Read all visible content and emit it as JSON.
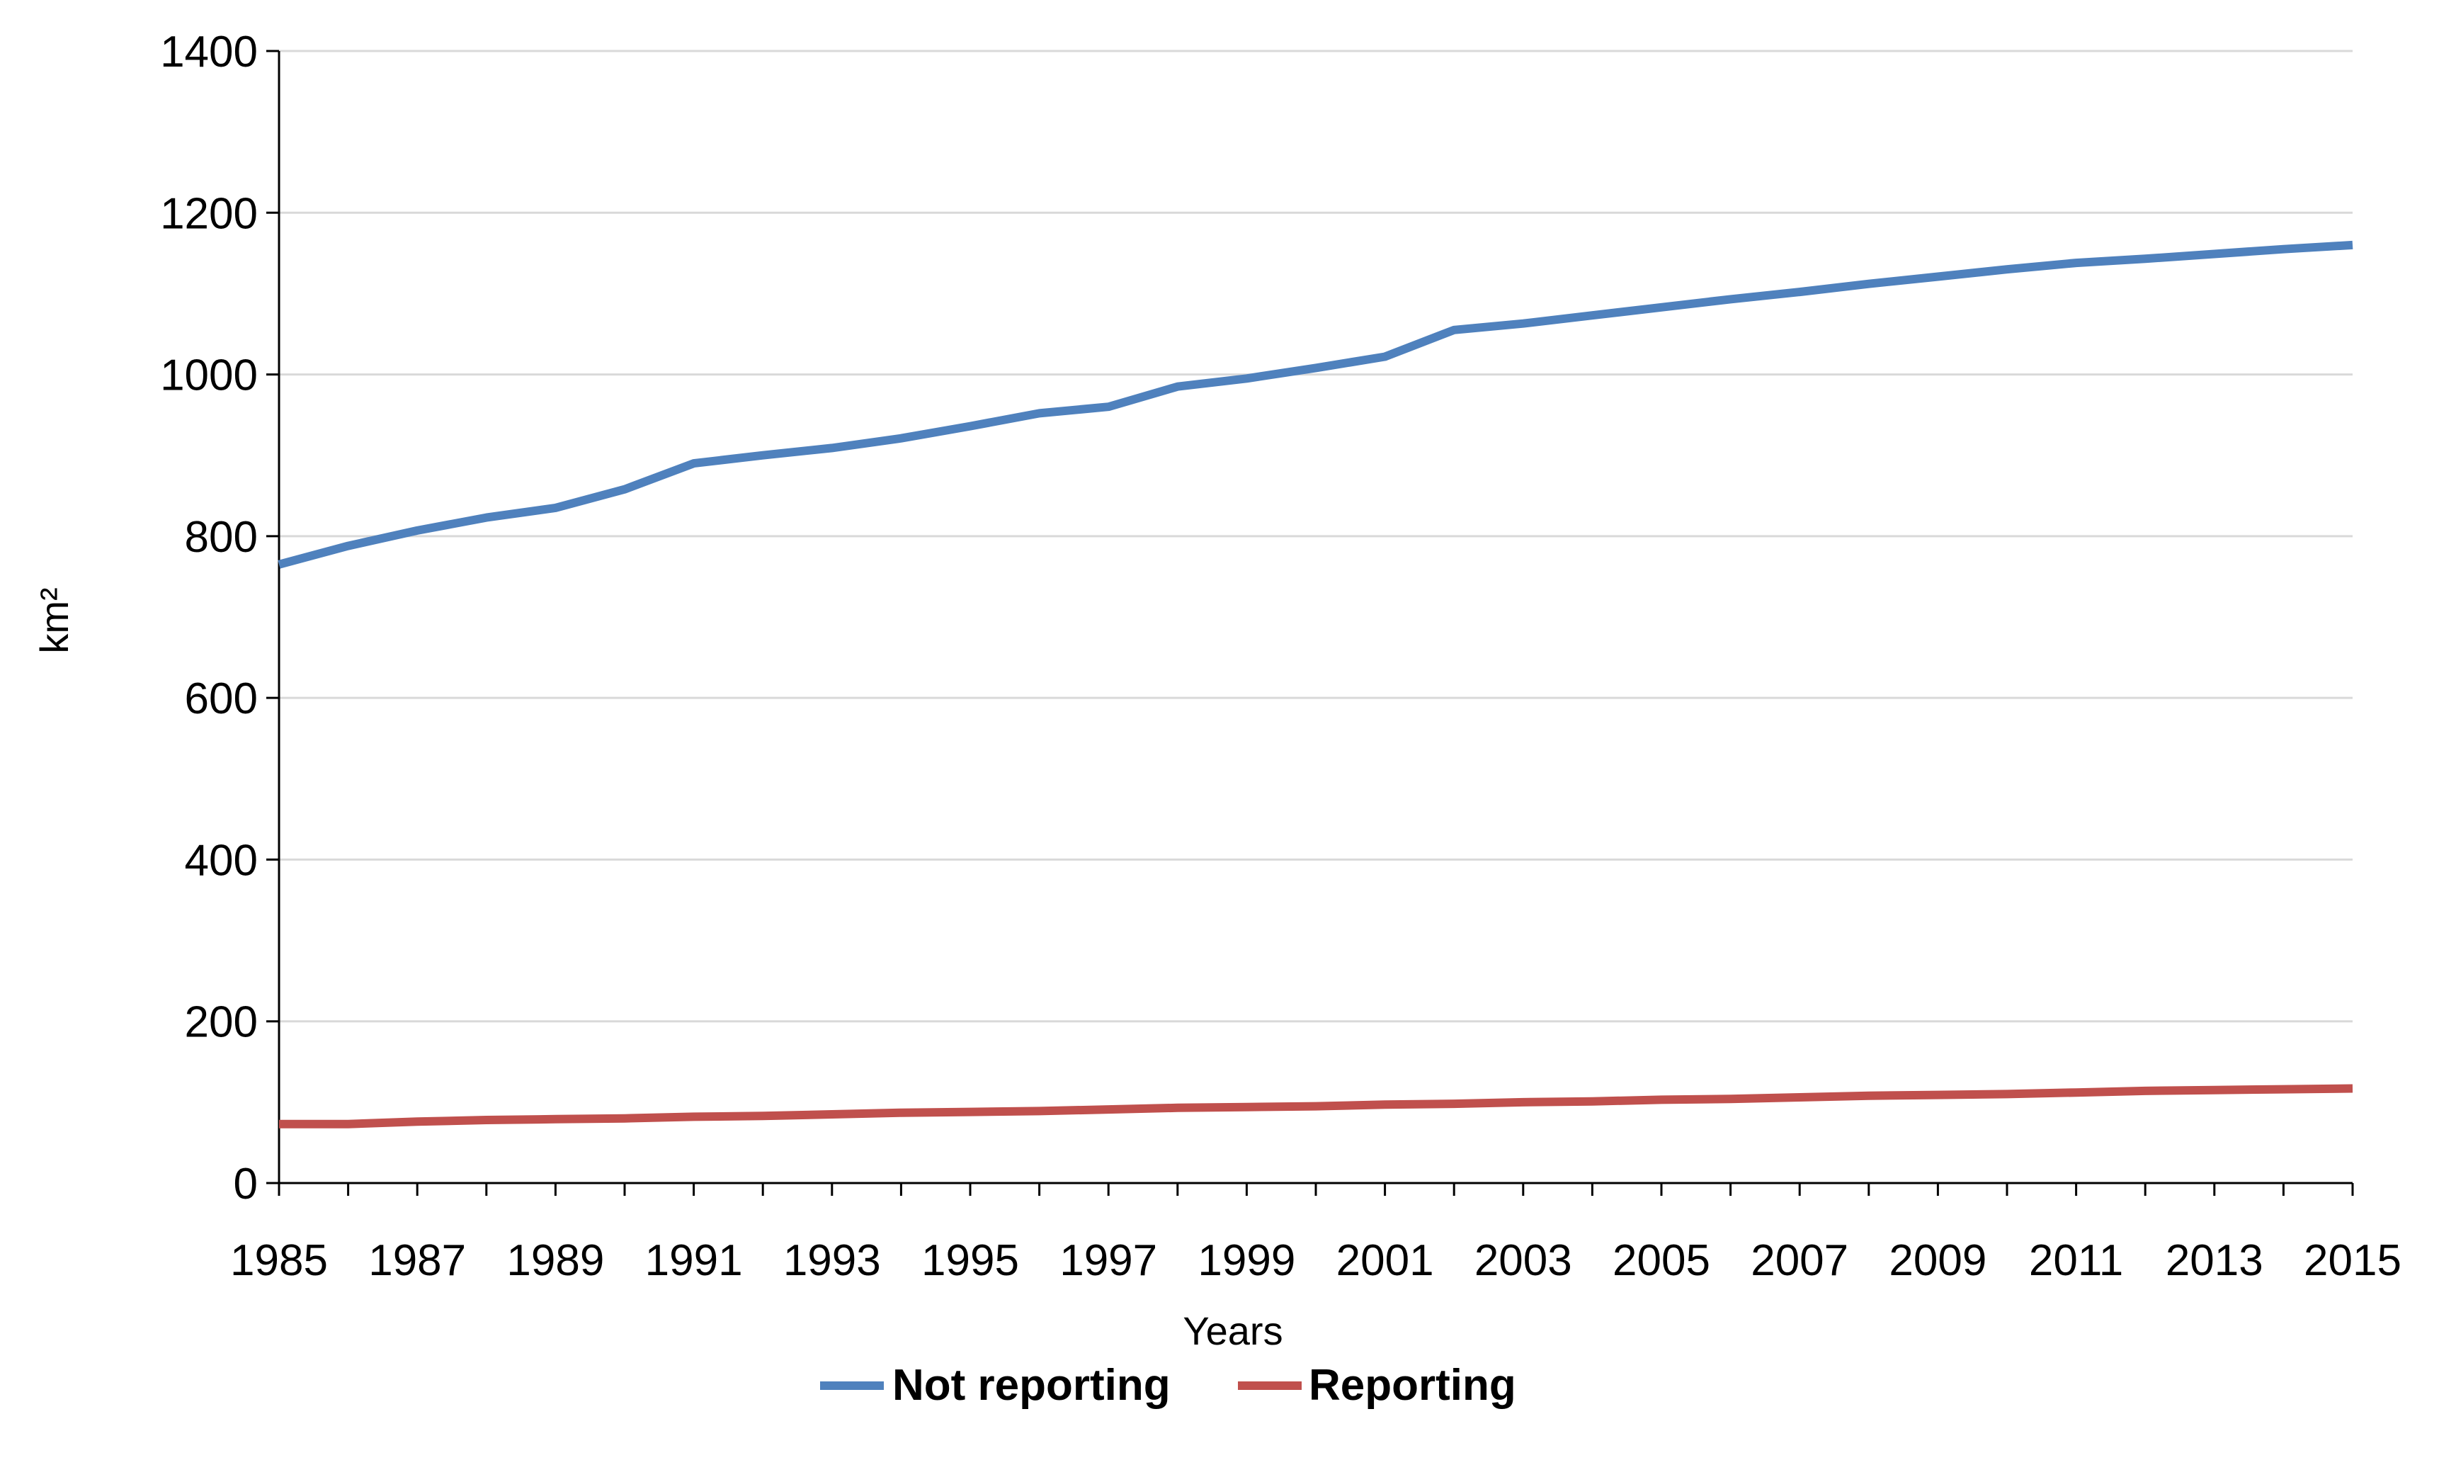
{
  "chart_data": {
    "type": "line",
    "title": "",
    "xlabel": "Years",
    "ylabel": "km²",
    "ylim": [
      0,
      1400
    ],
    "xlim": [
      1985,
      2015
    ],
    "y_ticks": [
      "0",
      "200",
      "400",
      "600",
      "800",
      "1000",
      "1200",
      "1400"
    ],
    "x_ticks": [
      "1985",
      "1987",
      "1989",
      "1991",
      "1993",
      "1995",
      "1997",
      "1999",
      "2001",
      "2003",
      "2005",
      "2007",
      "2009",
      "2011",
      "2013",
      "2015"
    ],
    "grid": "horizontal",
    "legend_position": "bottom",
    "x": [
      1985,
      1986,
      1987,
      1988,
      1989,
      1990,
      1991,
      1992,
      1993,
      1994,
      1995,
      1996,
      1997,
      1998,
      1999,
      2000,
      2001,
      2002,
      2003,
      2004,
      2005,
      2006,
      2007,
      2008,
      2009,
      2010,
      2011,
      2012,
      2013,
      2014,
      2015
    ],
    "series": [
      {
        "name": "Not reporting",
        "color": "#4f81bd",
        "values": [
          765,
          788,
          807,
          823,
          835,
          858,
          890,
          900,
          909,
          921,
          936,
          952,
          960,
          985,
          995,
          1008,
          1022,
          1055,
          1063,
          1073,
          1083,
          1093,
          1102,
          1112,
          1121,
          1130,
          1138,
          1143,
          1149,
          1155,
          1160
        ]
      },
      {
        "name": "Reporting",
        "color": "#c0504d",
        "values": [
          73,
          73,
          76,
          78,
          79,
          80,
          82,
          83,
          85,
          87,
          88,
          89,
          91,
          93,
          94,
          95,
          97,
          98,
          100,
          101,
          103,
          104,
          106,
          108,
          109,
          110,
          112,
          114,
          115,
          116,
          117
        ]
      }
    ]
  }
}
